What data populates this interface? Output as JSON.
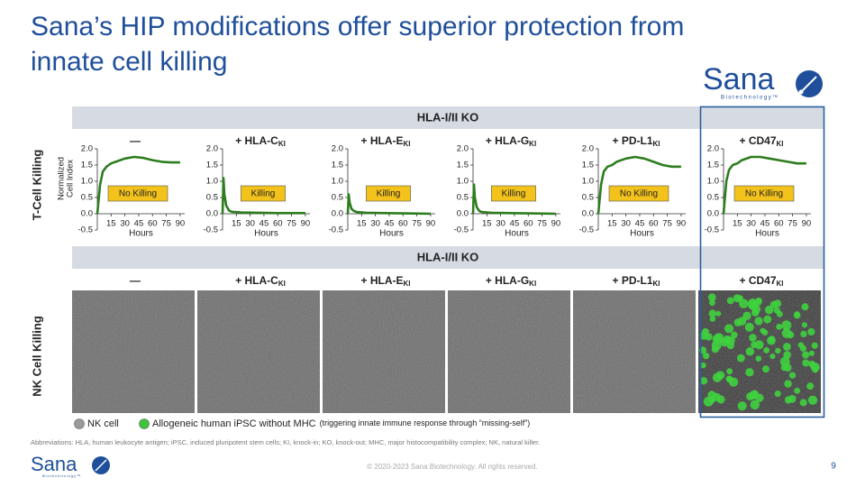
{
  "slide": {
    "title": [
      "Sana’s HIP modifications offer superior protection from",
      "innate cell killing"
    ],
    "logo": {
      "name": "Sana",
      "tagline": "Biotechnology™"
    },
    "group_label_top": "HLA-I/II KO",
    "group_label_bottom": "HLA-I/II KO",
    "row_label_top": "T-Cell Killing",
    "row_label_bottom": "NK Cell Killing",
    "nk_conditions": [
      {
        "label": "—"
      },
      {
        "label": "+ HLA-C",
        "sub": "KI"
      },
      {
        "label": "+ HLA-E",
        "sub": "KI"
      },
      {
        "label": "+ HLA-G",
        "sub": "KI"
      },
      {
        "label": "+ PD-L1",
        "sub": "KI"
      },
      {
        "label": "+ CD47",
        "sub": "KI"
      }
    ],
    "legend": [
      {
        "label": "NK cell",
        "color": "#9a9a9a"
      },
      {
        "label": "Allogeneic human iPSC without MHC",
        "note": "(triggering innate immune response through “missing-self”)",
        "color": "#3cc43c"
      }
    ],
    "abbreviations": "Abbreviations: HLA, human leukocyte antigen; iPSC, induced pluripotent stem cells; KI, knock-in; KO, knock-out; MHC, major histocompatibility complex; NK, natural killer.",
    "copyright": "© 2020-2023 Sana Biotechnology. All rights reserved.",
    "page_number": "9"
  },
  "chart_data": [
    {
      "type": "line",
      "title": "—",
      "ylabel": [
        "Normalized",
        "Cell Index"
      ],
      "xlabel": "Hours",
      "annotation": "No Killing",
      "color": "#2d7d1f",
      "xlim": [
        0,
        95
      ],
      "xticks": [
        15,
        30,
        45,
        60,
        75,
        90
      ],
      "ylim": [
        -0.5,
        2.0
      ],
      "yticks": [
        {
          "value": 2.0,
          "label": "2.0"
        },
        1.5,
        {
          "value": 1.0,
          "label": "1.0"
        },
        0.5,
        {
          "value": 0.0,
          "label": "0.0"
        },
        -0.5
      ],
      "x": [
        0,
        3,
        6,
        10,
        15,
        20,
        30,
        40,
        50,
        60,
        70,
        80,
        90
      ],
      "values": [
        0,
        0.9,
        1.3,
        1.45,
        1.55,
        1.6,
        1.7,
        1.75,
        1.72,
        1.65,
        1.6,
        1.58,
        1.58
      ]
    },
    {
      "type": "line",
      "title": "+ HLA-C",
      "title_sub": "KI",
      "xlabel": "Hours",
      "annotation": "Killing",
      "color": "#2d7d1f",
      "xlim": [
        0,
        95
      ],
      "xticks": [
        15,
        30,
        45,
        60,
        75,
        90
      ],
      "ylim": [
        -0.5,
        2.0
      ],
      "yticks": [
        {
          "value": 2.0,
          "label": "2.0"
        },
        1.5,
        {
          "value": 1.0,
          "label": "1.0"
        },
        0.5,
        {
          "value": 0.0,
          "label": "0.0"
        },
        -0.5
      ],
      "x": [
        0,
        1,
        2,
        4,
        7,
        10,
        20,
        40,
        60,
        90
      ],
      "values": [
        0,
        1.1,
        0.6,
        0.25,
        0.1,
        0.06,
        0.04,
        0.03,
        0.02,
        0.02
      ]
    },
    {
      "type": "line",
      "title": "+ HLA-E",
      "title_sub": "KI",
      "xlabel": "Hours",
      "annotation": "Killing",
      "color": "#2d7d1f",
      "xlim": [
        0,
        95
      ],
      "xticks": [
        15,
        30,
        45,
        60,
        75,
        90
      ],
      "ylim": [
        -0.5,
        2.0
      ],
      "yticks": [
        {
          "value": 2.0,
          "label": "2.0"
        },
        1.5,
        {
          "value": 1.0,
          "label": "1.0"
        },
        0.5,
        {
          "value": 0.0,
          "label": "0.0"
        },
        -0.5
      ],
      "x": [
        0,
        1,
        2,
        4,
        7,
        10,
        20,
        40,
        60,
        90
      ],
      "values": [
        0,
        0.6,
        0.35,
        0.15,
        0.08,
        0.05,
        0.03,
        0.02,
        0.01,
        0
      ]
    },
    {
      "type": "line",
      "title": "+ HLA-G",
      "title_sub": "KI",
      "xlabel": "Hours",
      "annotation": "Killing",
      "color": "#2d7d1f",
      "xlim": [
        0,
        95
      ],
      "xticks": [
        15,
        30,
        45,
        60,
        75,
        90
      ],
      "ylim": [
        -0.5,
        2.0
      ],
      "yticks": [
        {
          "value": 2.0,
          "label": "2.0"
        },
        1.5,
        {
          "value": 1.0,
          "label": "1.0"
        },
        0.5,
        {
          "value": 0.0,
          "label": "0.0"
        },
        -0.5
      ],
      "x": [
        0,
        1,
        2,
        4,
        7,
        10,
        20,
        40,
        60,
        90
      ],
      "values": [
        0,
        0.9,
        0.5,
        0.2,
        0.08,
        0.05,
        0.03,
        0.02,
        0.01,
        0
      ]
    },
    {
      "type": "line",
      "title": "+ PD-L1",
      "title_sub": "KI",
      "xlabel": "Hours",
      "annotation": "No Killing",
      "color": "#2d7d1f",
      "xlim": [
        0,
        95
      ],
      "xticks": [
        15,
        30,
        45,
        60,
        75,
        90
      ],
      "ylim": [
        -0.5,
        2.0
      ],
      "yticks": [
        {
          "value": 2.0,
          "label": "2.0"
        },
        1.5,
        {
          "value": 1.0,
          "label": "1.0"
        },
        0.5,
        {
          "value": 0.0,
          "label": "0.0"
        },
        -0.5
      ],
      "x": [
        0,
        3,
        6,
        10,
        15,
        20,
        30,
        40,
        50,
        60,
        70,
        80,
        90
      ],
      "values": [
        0,
        0.9,
        1.3,
        1.45,
        1.5,
        1.6,
        1.7,
        1.75,
        1.7,
        1.6,
        1.5,
        1.45,
        1.45
      ]
    },
    {
      "type": "line",
      "title": "+ CD47",
      "title_sub": "KI",
      "xlabel": "Hours",
      "annotation": "No Killing",
      "color": "#2d7d1f",
      "xlim": [
        0,
        95
      ],
      "xticks": [
        15,
        30,
        45,
        60,
        75,
        90
      ],
      "ylim": [
        -0.5,
        2.0
      ],
      "yticks": [
        {
          "value": 2.0,
          "label": "2.0"
        },
        1.5,
        {
          "value": 1.0,
          "label": "1.0"
        },
        0.5,
        {
          "value": 0.0,
          "label": "0.0"
        },
        -0.5
      ],
      "x": [
        0,
        3,
        6,
        10,
        15,
        20,
        30,
        40,
        50,
        60,
        70,
        80,
        90
      ],
      "values": [
        0,
        1.0,
        1.35,
        1.5,
        1.55,
        1.65,
        1.75,
        1.75,
        1.7,
        1.65,
        1.6,
        1.55,
        1.55
      ]
    }
  ]
}
